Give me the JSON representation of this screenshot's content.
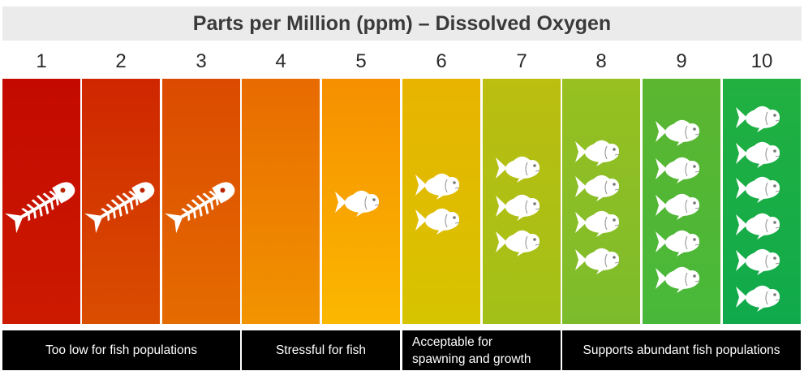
{
  "title": "Parts per Million (ppm) – Dissolved Oxygen",
  "levels": [
    {
      "number": "1",
      "fish": 0,
      "skeleton": 1,
      "top_color": "#c40a00",
      "bottom_color": "#cc1a00"
    },
    {
      "number": "2",
      "fish": 0,
      "skeleton": 1,
      "top_color": "#cf2600",
      "bottom_color": "#da4e00"
    },
    {
      "number": "3",
      "fish": 0,
      "skeleton": 1,
      "top_color": "#db4a00",
      "bottom_color": "#e56c00"
    },
    {
      "number": "4",
      "fish": 0,
      "skeleton": 0,
      "top_color": "#e86a00",
      "bottom_color": "#f29400"
    },
    {
      "number": "5",
      "fish": 1,
      "skeleton": 0,
      "top_color": "#f68f00",
      "bottom_color": "#fbb800"
    },
    {
      "number": "6",
      "fish": 2,
      "skeleton": 0,
      "top_color": "#e8b400",
      "bottom_color": "#d6c400"
    },
    {
      "number": "7",
      "fish": 3,
      "skeleton": 0,
      "top_color": "#bcbe10",
      "bottom_color": "#a2c018"
    },
    {
      "number": "8",
      "fish": 4,
      "skeleton": 0,
      "top_color": "#98c020",
      "bottom_color": "#7cbc2c"
    },
    {
      "number": "9",
      "fish": 5,
      "skeleton": 0,
      "top_color": "#5cb630",
      "bottom_color": "#48b83a"
    },
    {
      "number": "10",
      "fish": 6,
      "skeleton": 0,
      "top_color": "#22b040",
      "bottom_color": "#10aa4c"
    }
  ],
  "categories": [
    {
      "lines": [
        "Too low for fish populations"
      ],
      "from": 1,
      "to": 3
    },
    {
      "lines": [
        "Stressful for fish"
      ],
      "from": 4,
      "to": 5
    },
    {
      "lines": [
        "Acceptable for",
        "spawning and growth"
      ],
      "from": 6,
      "to": 7
    },
    {
      "lines": [
        "Supports abundant fish populations"
      ],
      "from": 8,
      "to": 10
    }
  ],
  "colors": {
    "title_band": "#ebebeb",
    "title_text": "#3a3a3a",
    "category_band": "#000000",
    "category_text": "#ffffff",
    "icon": "#ffffff"
  },
  "icons": {
    "fish": "fish-icon",
    "skeleton": "fish-skeleton-icon"
  }
}
